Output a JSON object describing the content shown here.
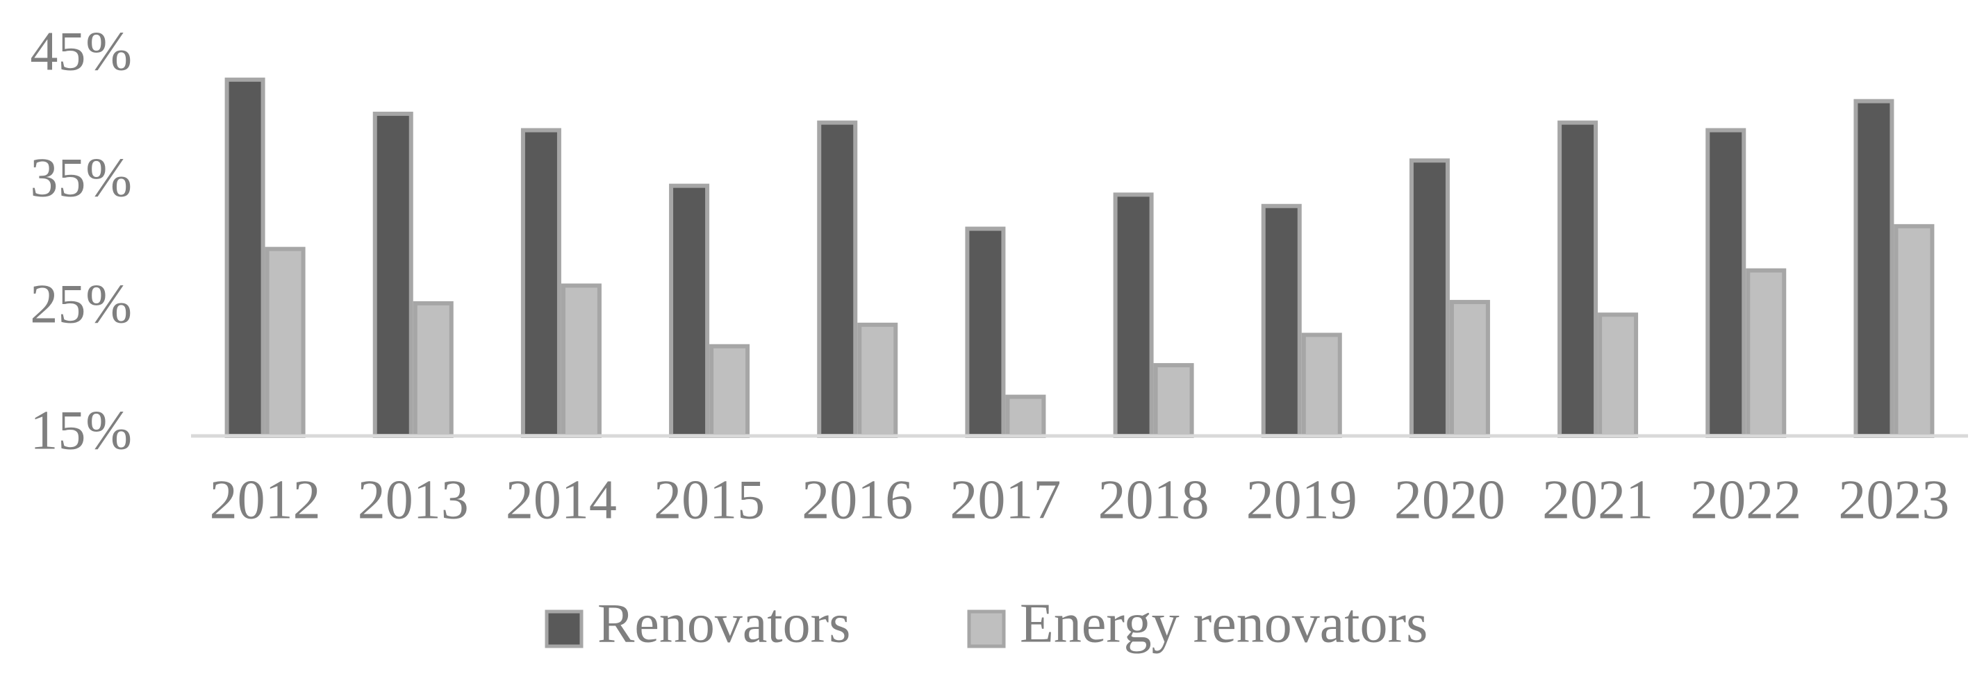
{
  "chart_data": {
    "type": "bar",
    "categories": [
      "2012",
      "2013",
      "2014",
      "2015",
      "2016",
      "2017",
      "2018",
      "2019",
      "2020",
      "2021",
      "2022",
      "2023"
    ],
    "series": [
      {
        "name": "Renovators",
        "color": "#595959",
        "values": [
          43.2,
          40.5,
          39.2,
          34.8,
          39.8,
          31.4,
          34.1,
          33.2,
          36.8,
          39.8,
          39.2,
          41.5
        ]
      },
      {
        "name": "Energy renovators",
        "color": "#bfbfbf",
        "values": [
          29.8,
          25.5,
          26.9,
          22.1,
          23.8,
          18.1,
          20.6,
          23.0,
          25.6,
          24.6,
          28.1,
          31.6
        ]
      }
    ],
    "ylim": [
      15,
      45
    ],
    "yticks": [
      {
        "value": 15,
        "label": "15%"
      },
      {
        "value": 25,
        "label": "25%"
      },
      {
        "value": 35,
        "label": "35%"
      },
      {
        "value": 45,
        "label": "45%"
      }
    ],
    "grid": false,
    "legend": "bottom"
  }
}
